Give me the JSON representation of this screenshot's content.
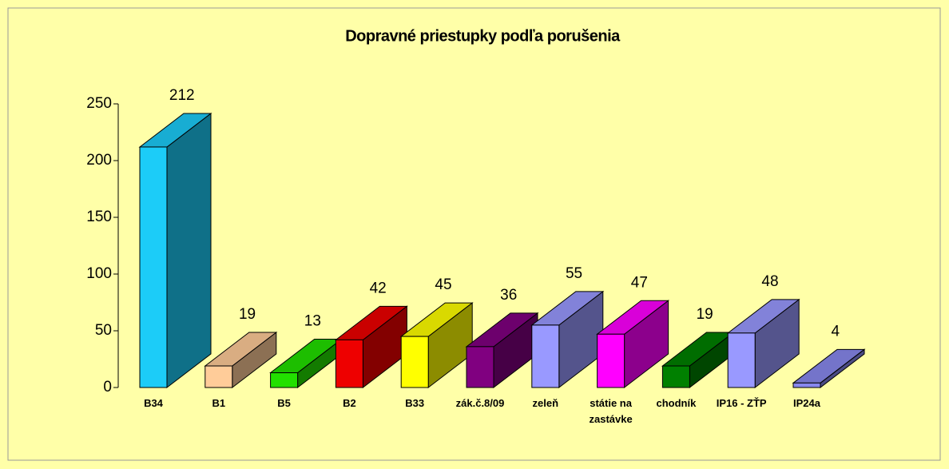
{
  "chart_data": {
    "type": "bar3d",
    "title": "Dopravné priestupky podľa porušenia",
    "categories": [
      "B34",
      "B1",
      "B5",
      "B2",
      "B33",
      "zák.č.8/09",
      "zeleň",
      "státie na zastávke",
      "chodník",
      "IP16 - ZŤP",
      "IP24a"
    ],
    "values": [
      212,
      19,
      13,
      42,
      45,
      36,
      55,
      47,
      19,
      48,
      4
    ],
    "colors": [
      "#1cccf8",
      "#ffcc99",
      "#22e000",
      "#ee0000",
      "#ffff00",
      "#800080",
      "#9999ff",
      "#ff00ff",
      "#008000",
      "#9999ff",
      "#8888ee"
    ],
    "ylim": [
      0,
      250
    ],
    "yticks": [
      0,
      50,
      100,
      150,
      200,
      250
    ],
    "grid": false
  }
}
